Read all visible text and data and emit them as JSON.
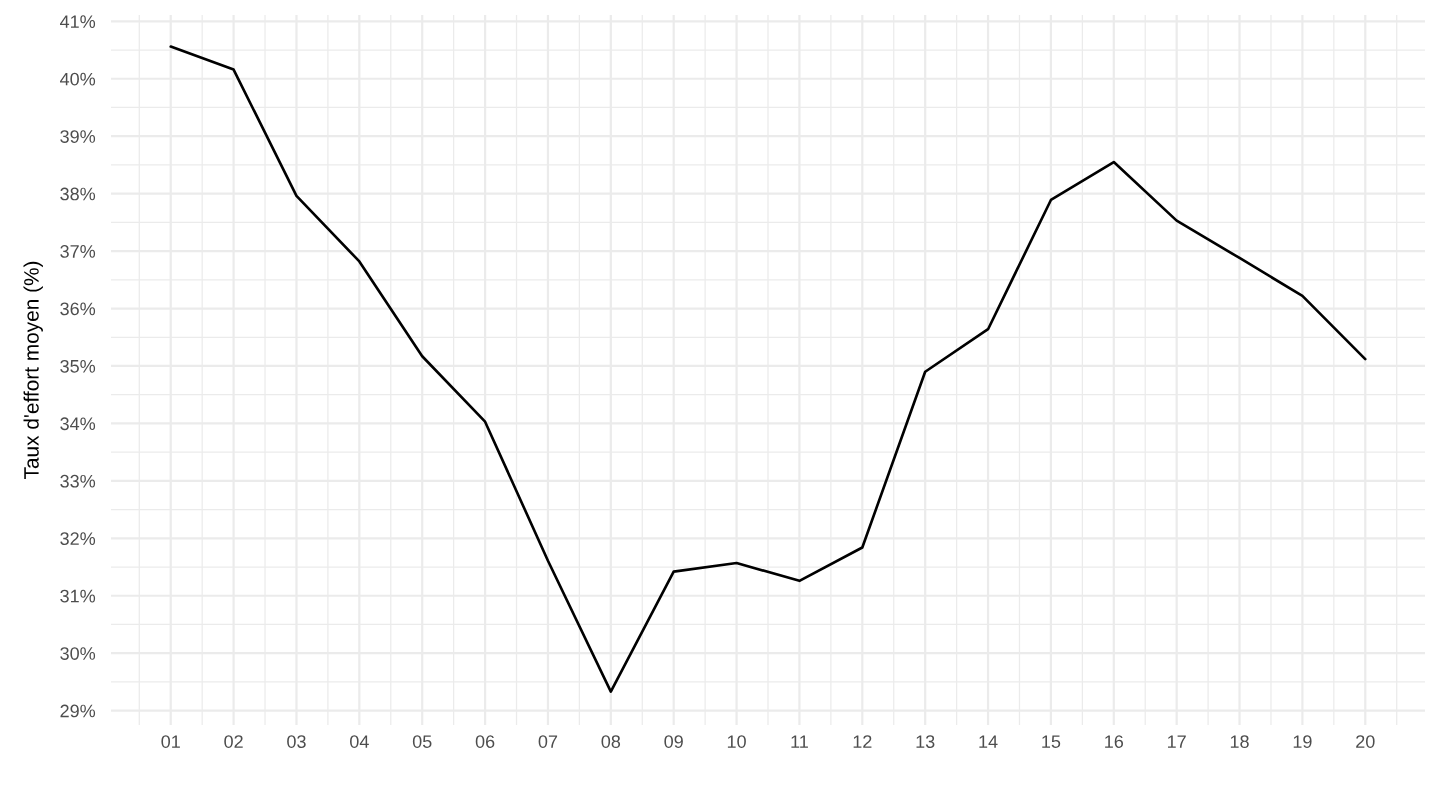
{
  "chart_data": {
    "type": "line",
    "ylabel": "Taux d'effort moyen (%)",
    "categories": [
      "01",
      "02",
      "03",
      "04",
      "05",
      "06",
      "07",
      "08",
      "09",
      "10",
      "11",
      "12",
      "13",
      "14",
      "15",
      "16",
      "17",
      "18",
      "19",
      "20"
    ],
    "series": [
      {
        "color": "#000000",
        "values": [
          40.56,
          40.16,
          37.96,
          36.82,
          35.17,
          34.03,
          31.61,
          29.33,
          31.42,
          31.57,
          31.26,
          31.84,
          34.9,
          35.64,
          37.89,
          38.55,
          37.53,
          36.88,
          36.22,
          35.12
        ]
      }
    ],
    "ylim": [
      28.75,
      41.11
    ],
    "yticks": [
      {
        "value": 29,
        "label": "29%"
      },
      {
        "value": 30,
        "label": "30%"
      },
      {
        "value": 31,
        "label": "31%"
      },
      {
        "value": 32,
        "label": "32%"
      },
      {
        "value": 33,
        "label": "33%"
      },
      {
        "value": 34,
        "label": "34%"
      },
      {
        "value": 35,
        "label": "35%"
      },
      {
        "value": 36,
        "label": "36%"
      },
      {
        "value": 37,
        "label": "37%"
      },
      {
        "value": 38,
        "label": "38%"
      },
      {
        "value": 39,
        "label": "39%"
      },
      {
        "value": 40,
        "label": "40%"
      },
      {
        "value": 41,
        "label": "41%"
      }
    ],
    "grid": true,
    "line_style": "solid"
  }
}
